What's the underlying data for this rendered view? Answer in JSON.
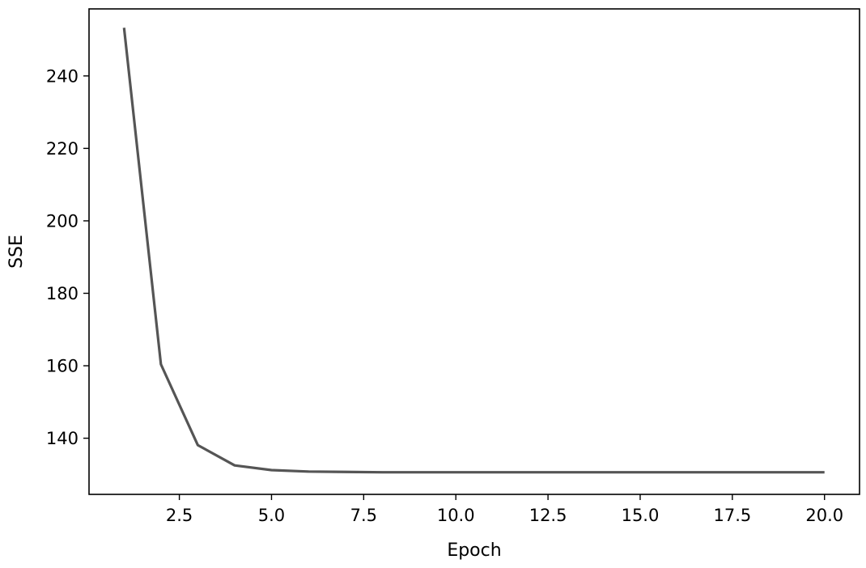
{
  "chart_data": {
    "type": "line",
    "title": "",
    "xlabel": "Epoch",
    "ylabel": "SSE",
    "xlim": [
      0.05,
      20.95
    ],
    "ylim": [
      124.5,
      258.5
    ],
    "xticks": [
      2.5,
      5.0,
      7.5,
      10.0,
      12.5,
      15.0,
      17.5,
      20.0
    ],
    "xtick_labels": [
      "2.5",
      "5.0",
      "7.5",
      "10.0",
      "12.5",
      "15.0",
      "17.5",
      "20.0"
    ],
    "yticks": [
      140,
      160,
      180,
      200,
      220,
      240
    ],
    "ytick_labels": [
      "140",
      "160",
      "180",
      "200",
      "220",
      "240"
    ],
    "grid": false,
    "series": [
      {
        "x": [
          1,
          2,
          3,
          4,
          5,
          6,
          7,
          8,
          9,
          10,
          11,
          12,
          13,
          14,
          15,
          16,
          17,
          18,
          19,
          20
        ],
        "y": [
          253.3,
          160.4,
          138.1,
          132.5,
          131.2,
          130.8,
          130.7,
          130.6,
          130.6,
          130.6,
          130.6,
          130.6,
          130.6,
          130.6,
          130.6,
          130.6,
          130.6,
          130.6,
          130.6,
          130.6
        ],
        "color": "#555555"
      }
    ]
  }
}
